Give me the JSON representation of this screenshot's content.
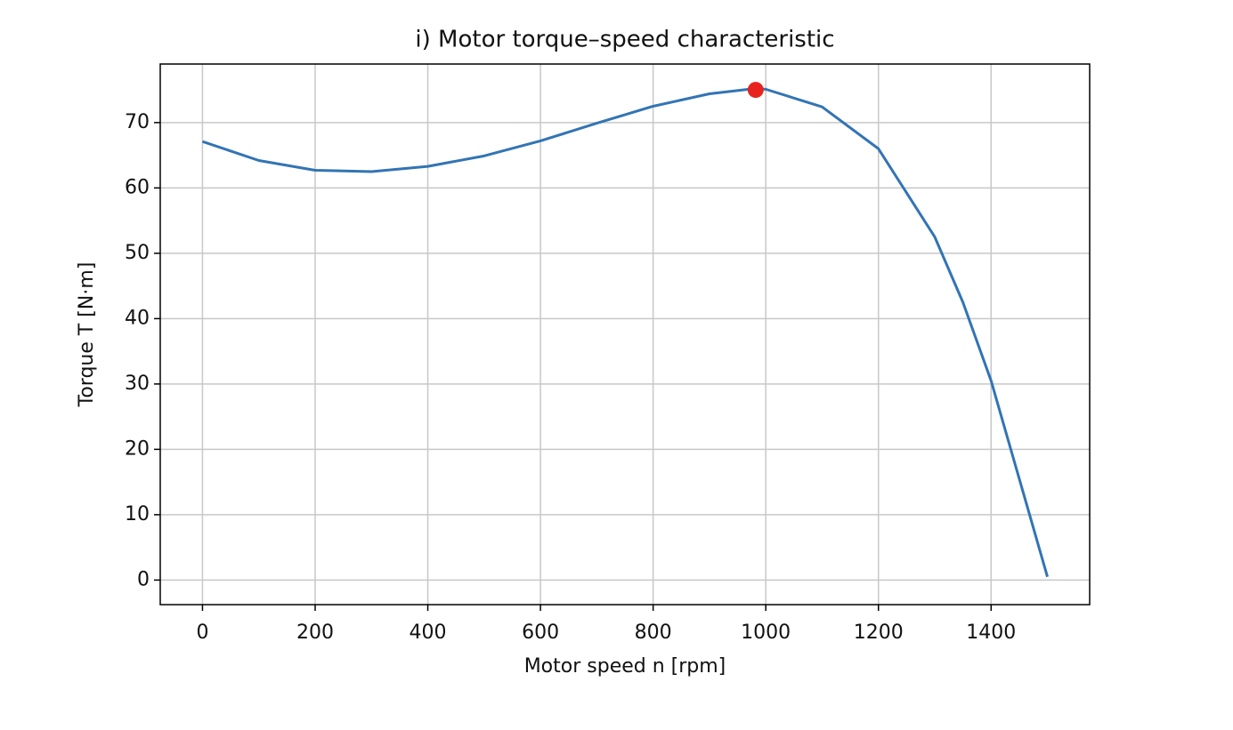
{
  "chart_data": {
    "type": "line",
    "title": "i) Motor torque–speed characteristic",
    "x_label": "Motor speed  n  [rpm]",
    "y_label": "Torque  T  [N·m]",
    "series": [
      {
        "style": "line",
        "color": "#3274b5",
        "x": [
          0,
          100,
          200,
          300,
          400,
          500,
          600,
          700,
          800,
          900,
          980,
          1000,
          1100,
          1200,
          1300,
          1350,
          1400,
          1450,
          1500
        ],
        "values": [
          67.1,
          64.2,
          62.7,
          62.5,
          63.3,
          64.9,
          67.2,
          69.9,
          72.5,
          74.4,
          75.2,
          75.1,
          72.4,
          66.0,
          52.5,
          42.5,
          30.5,
          15.5,
          0.5
        ]
      },
      {
        "style": "scatter",
        "color": "#e8231f",
        "x": [
          982
        ],
        "values": [
          75.0
        ]
      }
    ],
    "xlim": [
      -75,
      1575
    ],
    "xticks": [
      0,
      200,
      400,
      600,
      800,
      1000,
      1200,
      1400
    ],
    "ylim": [
      -3.76,
      78.96
    ],
    "yticks": [
      0,
      10,
      20,
      30,
      40,
      50,
      60,
      70
    ],
    "grid": true
  }
}
